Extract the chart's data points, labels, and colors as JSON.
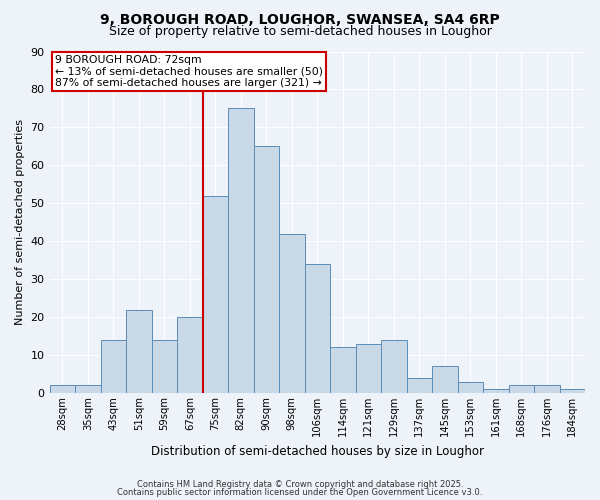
{
  "title": "9, BOROUGH ROAD, LOUGHOR, SWANSEA, SA4 6RP",
  "subtitle": "Size of property relative to semi-detached houses in Loughor",
  "xlabel": "Distribution of semi-detached houses by size in Loughor",
  "ylabel": "Number of semi-detached properties",
  "bar_labels": [
    "28sqm",
    "35sqm",
    "43sqm",
    "51sqm",
    "59sqm",
    "67sqm",
    "75sqm",
    "82sqm",
    "90sqm",
    "98sqm",
    "106sqm",
    "114sqm",
    "121sqm",
    "129sqm",
    "137sqm",
    "145sqm",
    "153sqm",
    "161sqm",
    "168sqm",
    "176sqm",
    "184sqm"
  ],
  "bar_values": [
    2,
    2,
    14,
    22,
    14,
    20,
    52,
    75,
    65,
    42,
    34,
    12,
    13,
    14,
    4,
    7,
    3,
    1,
    2,
    2,
    1
  ],
  "bar_color": "#c9d9e8",
  "bar_edge_color": "#5b8db8",
  "annotation_title": "9 BOROUGH ROAD: 72sqm",
  "annotation_line1": "← 13% of semi-detached houses are smaller (50)",
  "annotation_line2": "87% of semi-detached houses are larger (321) →",
  "annotation_box_color": "#ffffff",
  "annotation_box_edge": "#cc0000",
  "vline_color": "#cc0000",
  "ylim": [
    0,
    90
  ],
  "yticks": [
    0,
    10,
    20,
    30,
    40,
    50,
    60,
    70,
    80,
    90
  ],
  "bg_color": "#eef2f9",
  "grid_color": "#ffffff",
  "footer1": "Contains HM Land Registry data © Crown copyright and database right 2025.",
  "footer2": "Contains public sector information licensed under the Open Government Licence v3.0.",
  "title_fontsize": 10,
  "subtitle_fontsize": 9
}
